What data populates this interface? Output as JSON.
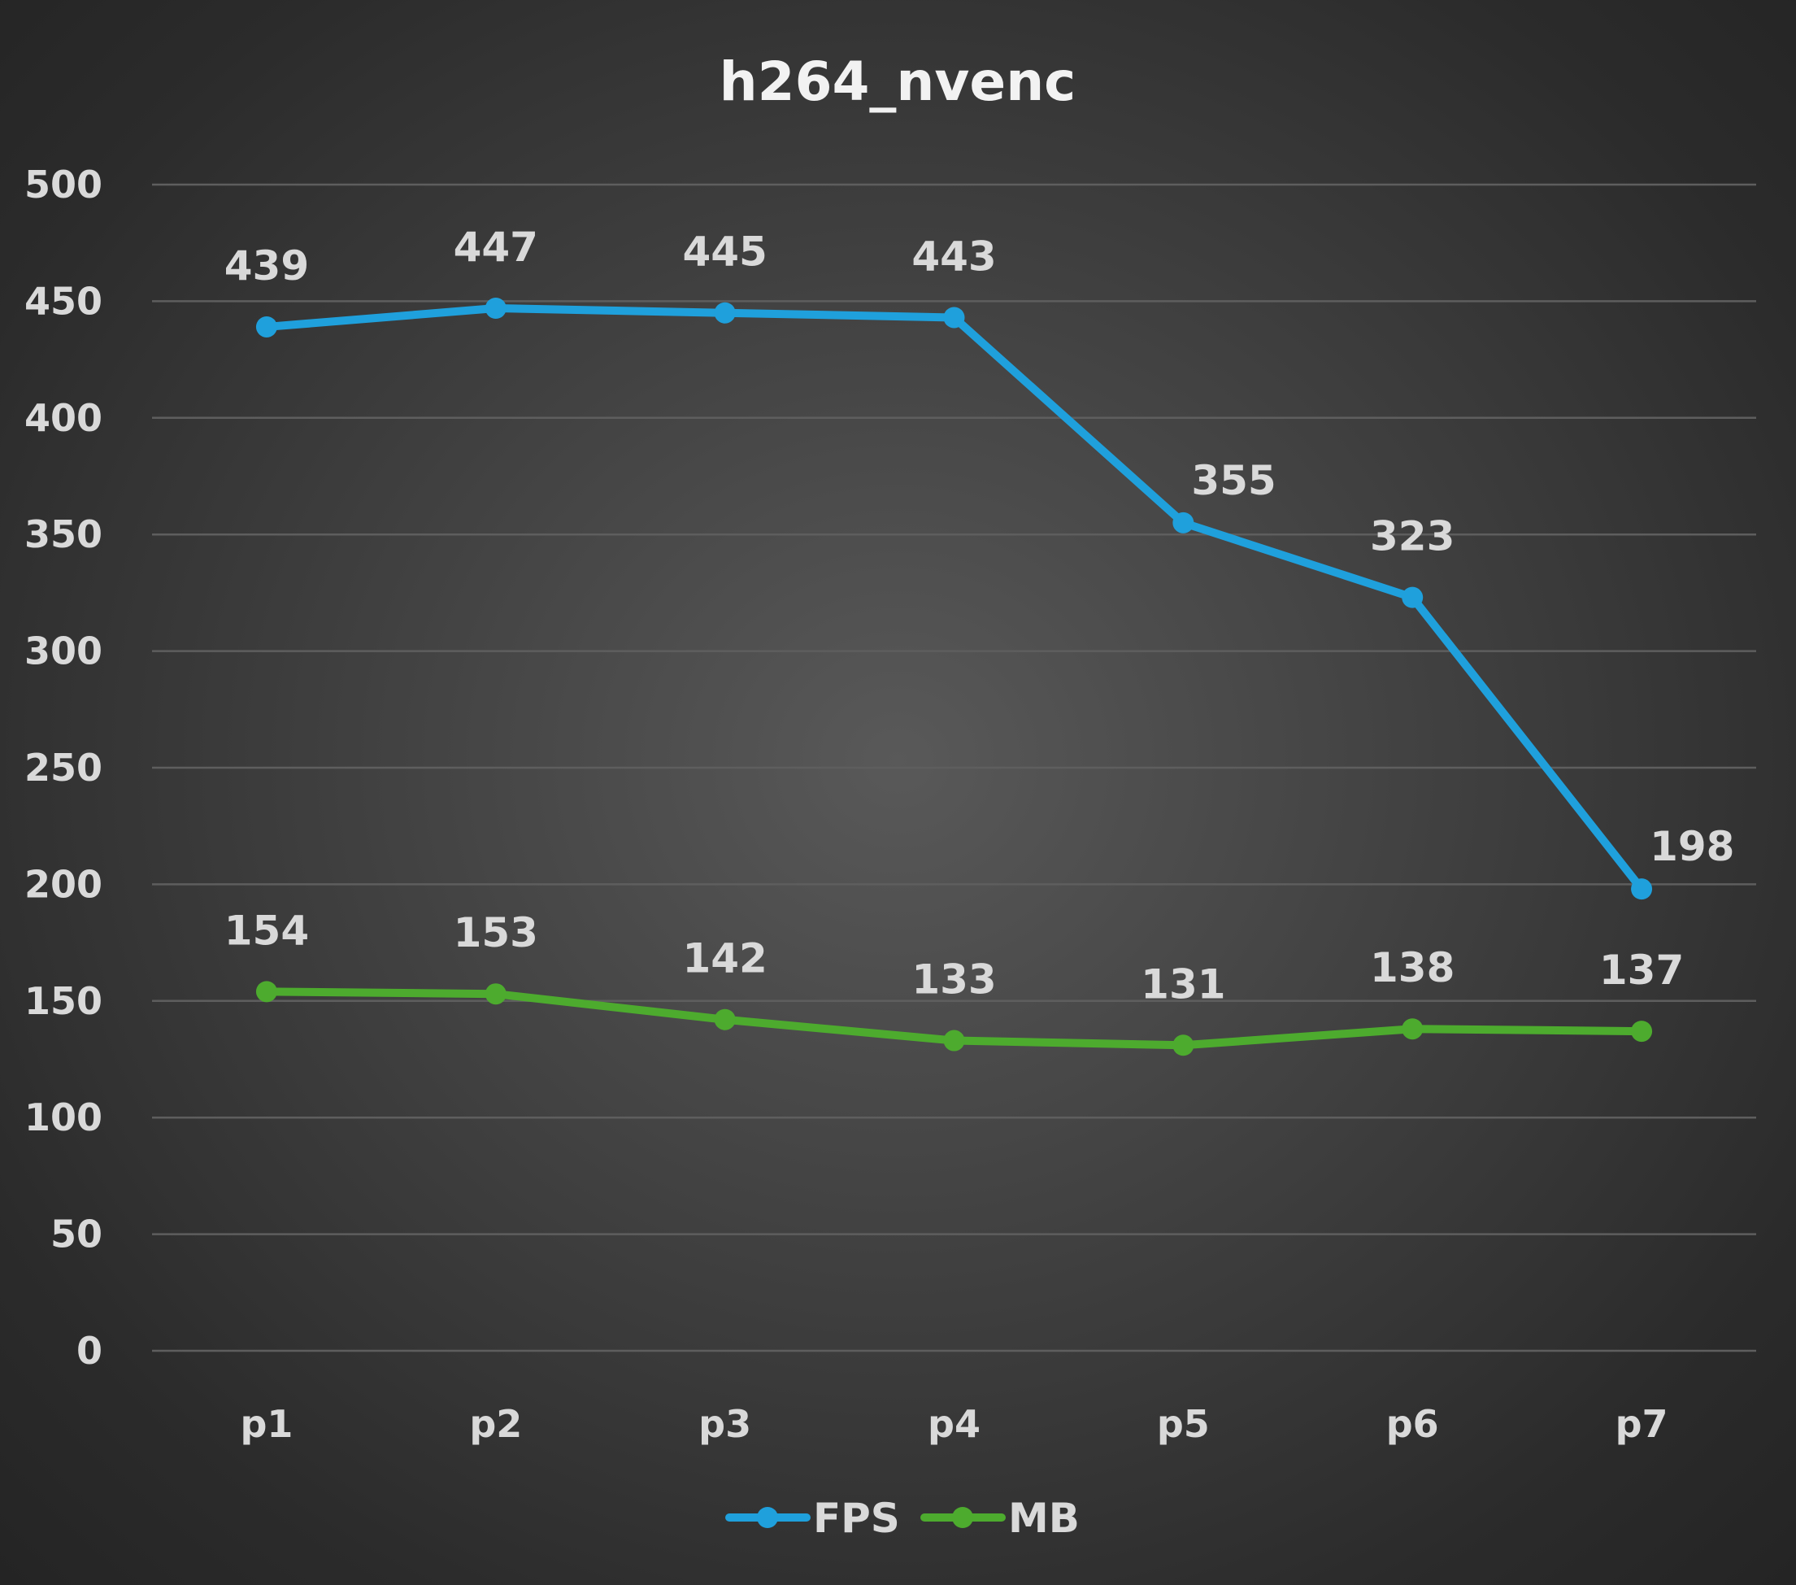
{
  "chart_data": {
    "type": "line",
    "title": "h264_nvenc",
    "categories": [
      "p1",
      "p2",
      "p3",
      "p4",
      "p5",
      "p6",
      "p7"
    ],
    "series": [
      {
        "name": "FPS",
        "color": "#1fa0dc",
        "values": [
          439,
          447,
          445,
          443,
          355,
          323,
          198
        ]
      },
      {
        "name": "MB",
        "color": "#4dab2e",
        "values": [
          154,
          153,
          142,
          133,
          131,
          138,
          137
        ]
      }
    ],
    "ylim": [
      0,
      500
    ],
    "yticks": [
      0,
      50,
      100,
      150,
      200,
      250,
      300,
      350,
      400,
      450,
      500
    ],
    "grid": true,
    "legend_position": "bottom",
    "background": "#3a3a3a"
  }
}
